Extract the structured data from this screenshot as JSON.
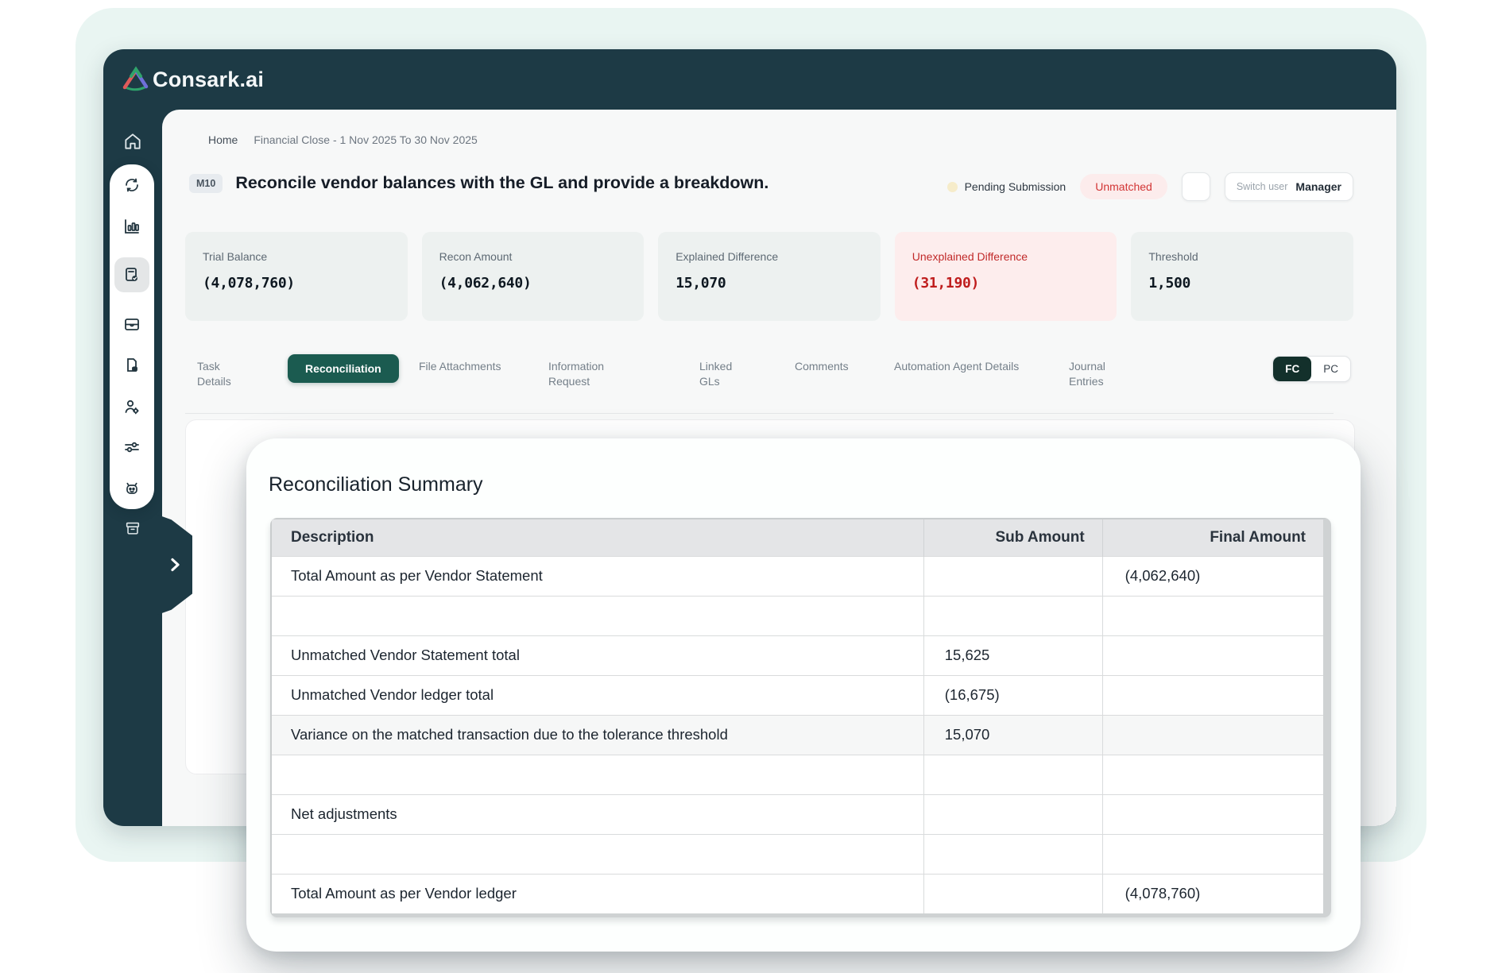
{
  "brand": {
    "name": "Consark.ai"
  },
  "breadcrumb": {
    "home": "Home",
    "path": "Financial Close - 1 Nov 2025 To 30 Nov 2025"
  },
  "task": {
    "id": "M10",
    "title": "Reconcile vendor balances with the GL and provide a breakdown.",
    "status": "Pending Submission",
    "match_status": "Unmatched",
    "switch_user_label": "Switch user",
    "switch_user_value": "Manager"
  },
  "stats": [
    {
      "label": "Trial Balance",
      "value": "(4,078,760)",
      "variant": "default"
    },
    {
      "label": "Recon Amount",
      "value": "(4,062,640)",
      "variant": "default"
    },
    {
      "label": "Explained Difference",
      "value": "15,070",
      "variant": "default"
    },
    {
      "label": "Unexplained Difference",
      "value": "(31,190)",
      "variant": "danger"
    },
    {
      "label": "Threshold",
      "value": "1,500",
      "variant": "default"
    }
  ],
  "tabs": [
    {
      "label": "Task Details",
      "selected": false
    },
    {
      "label": "Reconciliation",
      "selected": true
    },
    {
      "label": "File Attachments",
      "selected": false
    },
    {
      "label": "Information Request",
      "selected": false
    },
    {
      "label": "Linked GLs",
      "selected": false
    },
    {
      "label": "Comments",
      "selected": false
    },
    {
      "label": "Automation Agent Details",
      "selected": false
    },
    {
      "label": "Journal Entries",
      "selected": false
    }
  ],
  "toggle": {
    "options": [
      "FC",
      "PC"
    ],
    "selected": "FC"
  },
  "summary": {
    "title": "Reconciliation Summary",
    "columns": [
      "Description",
      "Sub Amount",
      "Final Amount"
    ],
    "rows": [
      {
        "description": "Total Amount as per Vendor Statement",
        "sub": "",
        "final": "(4,062,640)",
        "highlight": false
      },
      {
        "description": "",
        "sub": "",
        "final": "",
        "highlight": false
      },
      {
        "description": "Unmatched Vendor Statement total",
        "sub": "15,625",
        "final": "",
        "highlight": false
      },
      {
        "description": "Unmatched Vendor ledger total",
        "sub": "(16,675)",
        "final": "",
        "highlight": false
      },
      {
        "description": "Variance on the matched transaction due to the tolerance threshold",
        "sub": "15,070",
        "final": "",
        "highlight": true
      },
      {
        "description": "",
        "sub": "",
        "final": "",
        "highlight": false
      },
      {
        "description": "Net adjustments",
        "sub": "",
        "final": "",
        "highlight": false
      },
      {
        "description": "",
        "sub": "",
        "final": "",
        "highlight": false
      },
      {
        "description": "Total Amount as per Vendor ledger",
        "sub": "",
        "final": "(4,078,760)",
        "highlight": false
      }
    ]
  },
  "sidebar": {
    "icons": [
      "home",
      "sync",
      "bar-chart",
      "reconciliation-tasks",
      "inbox",
      "file-data",
      "user-settings",
      "sliders",
      "automation-bot",
      "archive",
      "expand-chevron"
    ]
  },
  "colors": {
    "brand_dark": "#1d3a45",
    "accent_teal": "#1b5b50",
    "danger_red": "#c32222",
    "pending_dot": "#f6ecca",
    "frame_mint": "#e9f5f2"
  }
}
